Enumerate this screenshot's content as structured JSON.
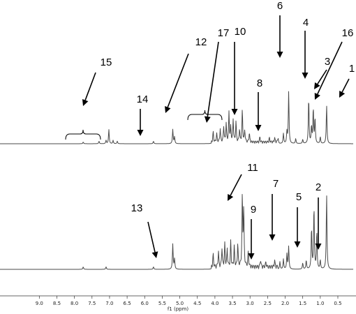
{
  "chart_data": {
    "type": "line",
    "xlabel": "f1 (ppm)",
    "x_unit": "ppm",
    "xlim": [
      9.5,
      0.2
    ],
    "x_ticks": [
      "9.0",
      "8.5",
      "8.0",
      "7.5",
      "7.0",
      "6.5",
      "6.0",
      "5.5",
      "5.0",
      "4.5",
      "4.0",
      "3.5",
      "3.0",
      "2.5",
      "2.0",
      "1.5",
      "1.0",
      "0.5"
    ],
    "spectra": [
      {
        "panel": "top",
        "peaks": [
          {
            "ppm": 7.75,
            "height": 0.02
          },
          {
            "ppm": 7.3,
            "height": 0.03
          },
          {
            "ppm": 7.1,
            "height": 0.04
          },
          {
            "ppm": 7.02,
            "height": 0.17
          },
          {
            "ppm": 6.9,
            "height": 0.04
          },
          {
            "ppm": 6.78,
            "height": 0.03
          },
          {
            "ppm": 5.75,
            "height": 0.03
          },
          {
            "ppm": 5.2,
            "height": 0.17
          },
          {
            "ppm": 5.15,
            "height": 0.08
          },
          {
            "ppm": 4.05,
            "height": 0.12
          },
          {
            "ppm": 3.95,
            "height": 0.1
          },
          {
            "ppm": 3.85,
            "height": 0.16
          },
          {
            "ppm": 3.75,
            "height": 0.19
          },
          {
            "ppm": 3.68,
            "height": 0.22
          },
          {
            "ppm": 3.6,
            "height": 0.35
          },
          {
            "ppm": 3.55,
            "height": 0.17
          },
          {
            "ppm": 3.48,
            "height": 0.27
          },
          {
            "ppm": 3.4,
            "height": 0.24
          },
          {
            "ppm": 3.3,
            "height": 0.15
          },
          {
            "ppm": 3.22,
            "height": 0.38
          },
          {
            "ppm": 3.15,
            "height": 0.14
          },
          {
            "ppm": 3.02,
            "height": 0.11
          },
          {
            "ppm": 2.72,
            "height": 0.06
          },
          {
            "ppm": 2.45,
            "height": 0.05
          },
          {
            "ppm": 2.3,
            "height": 0.05
          },
          {
            "ppm": 2.2,
            "height": 0.06
          },
          {
            "ppm": 2.05,
            "height": 0.12
          },
          {
            "ppm": 1.95,
            "height": 0.14
          },
          {
            "ppm": 1.9,
            "height": 0.62
          },
          {
            "ppm": 1.7,
            "height": 0.06
          },
          {
            "ppm": 1.5,
            "height": 0.05
          },
          {
            "ppm": 1.33,
            "height": 0.55
          },
          {
            "ppm": 1.25,
            "height": 0.2
          },
          {
            "ppm": 1.2,
            "height": 0.42
          },
          {
            "ppm": 1.15,
            "height": 0.3
          },
          {
            "ppm": 1.0,
            "height": 0.08
          },
          {
            "ppm": 0.82,
            "height": 0.46
          }
        ]
      },
      {
        "panel": "bottom",
        "peaks": [
          {
            "ppm": 7.75,
            "height": 0.02
          },
          {
            "ppm": 7.1,
            "height": 0.02
          },
          {
            "ppm": 5.75,
            "height": 0.02
          },
          {
            "ppm": 5.2,
            "height": 0.2
          },
          {
            "ppm": 5.15,
            "height": 0.08
          },
          {
            "ppm": 4.05,
            "height": 0.1
          },
          {
            "ppm": 3.9,
            "height": 0.12
          },
          {
            "ppm": 3.8,
            "height": 0.15
          },
          {
            "ppm": 3.72,
            "height": 0.18
          },
          {
            "ppm": 3.65,
            "height": 0.14
          },
          {
            "ppm": 3.55,
            "height": 0.2
          },
          {
            "ppm": 3.45,
            "height": 0.16
          },
          {
            "ppm": 3.35,
            "height": 0.18
          },
          {
            "ppm": 3.22,
            "height": 0.56
          },
          {
            "ppm": 3.18,
            "height": 0.45
          },
          {
            "ppm": 3.05,
            "height": 0.12
          },
          {
            "ppm": 2.7,
            "height": 0.06
          },
          {
            "ppm": 2.55,
            "height": 0.04
          },
          {
            "ppm": 2.3,
            "height": 0.05
          },
          {
            "ppm": 2.15,
            "height": 0.06
          },
          {
            "ppm": 2.05,
            "height": 0.08
          },
          {
            "ppm": 1.95,
            "height": 0.12
          },
          {
            "ppm": 1.9,
            "height": 0.18
          },
          {
            "ppm": 1.5,
            "height": 0.05
          },
          {
            "ppm": 1.4,
            "height": 0.07
          },
          {
            "ppm": 1.25,
            "height": 0.33
          },
          {
            "ppm": 1.18,
            "height": 0.5
          },
          {
            "ppm": 1.1,
            "height": 0.3
          },
          {
            "ppm": 1.0,
            "height": 0.07
          },
          {
            "ppm": 0.82,
            "height": 0.6
          }
        ]
      }
    ],
    "annotations": [
      {
        "label": "1",
        "panel": "top",
        "peak_ppm": 0.82
      },
      {
        "label": "2",
        "panel": "bottom",
        "peak_ppm": 1.0
      },
      {
        "label": "3",
        "panel": "top",
        "peak_ppm": 1.15
      },
      {
        "label": "4",
        "panel": "top",
        "peak_ppm": 1.33
      },
      {
        "label": "5",
        "panel": "bottom",
        "peak_ppm": 1.4
      },
      {
        "label": "6",
        "panel": "top",
        "peak_ppm": 1.9
      },
      {
        "label": "7",
        "panel": "bottom",
        "peak_ppm": 2.05
      },
      {
        "label": "8",
        "panel": "top",
        "peak_ppm": 2.3
      },
      {
        "label": "9",
        "panel": "bottom",
        "peak_ppm": 2.6
      },
      {
        "label": "10",
        "panel": "top",
        "peak_ppm": 3.02
      },
      {
        "label": "11",
        "panel": "bottom",
        "peak_ppm": 3.18
      },
      {
        "label": "12",
        "panel": "top",
        "peak_ppm": 5.2,
        "bracket_ppm": [
          4.1,
          3.2
        ]
      },
      {
        "label": "13",
        "panel": "bottom",
        "peak_ppm": 5.2
      },
      {
        "label": "14",
        "panel": "top",
        "peak_ppm": 5.75
      },
      {
        "label": "15",
        "panel": "top",
        "peak_ppm": 7.02,
        "bracket_ppm": [
          7.45,
          6.65
        ]
      },
      {
        "label": "16",
        "panel": "top",
        "peak_ppm": 1.05
      },
      {
        "label": "17",
        "panel": "top",
        "peak_ppm": 3.6
      }
    ]
  }
}
